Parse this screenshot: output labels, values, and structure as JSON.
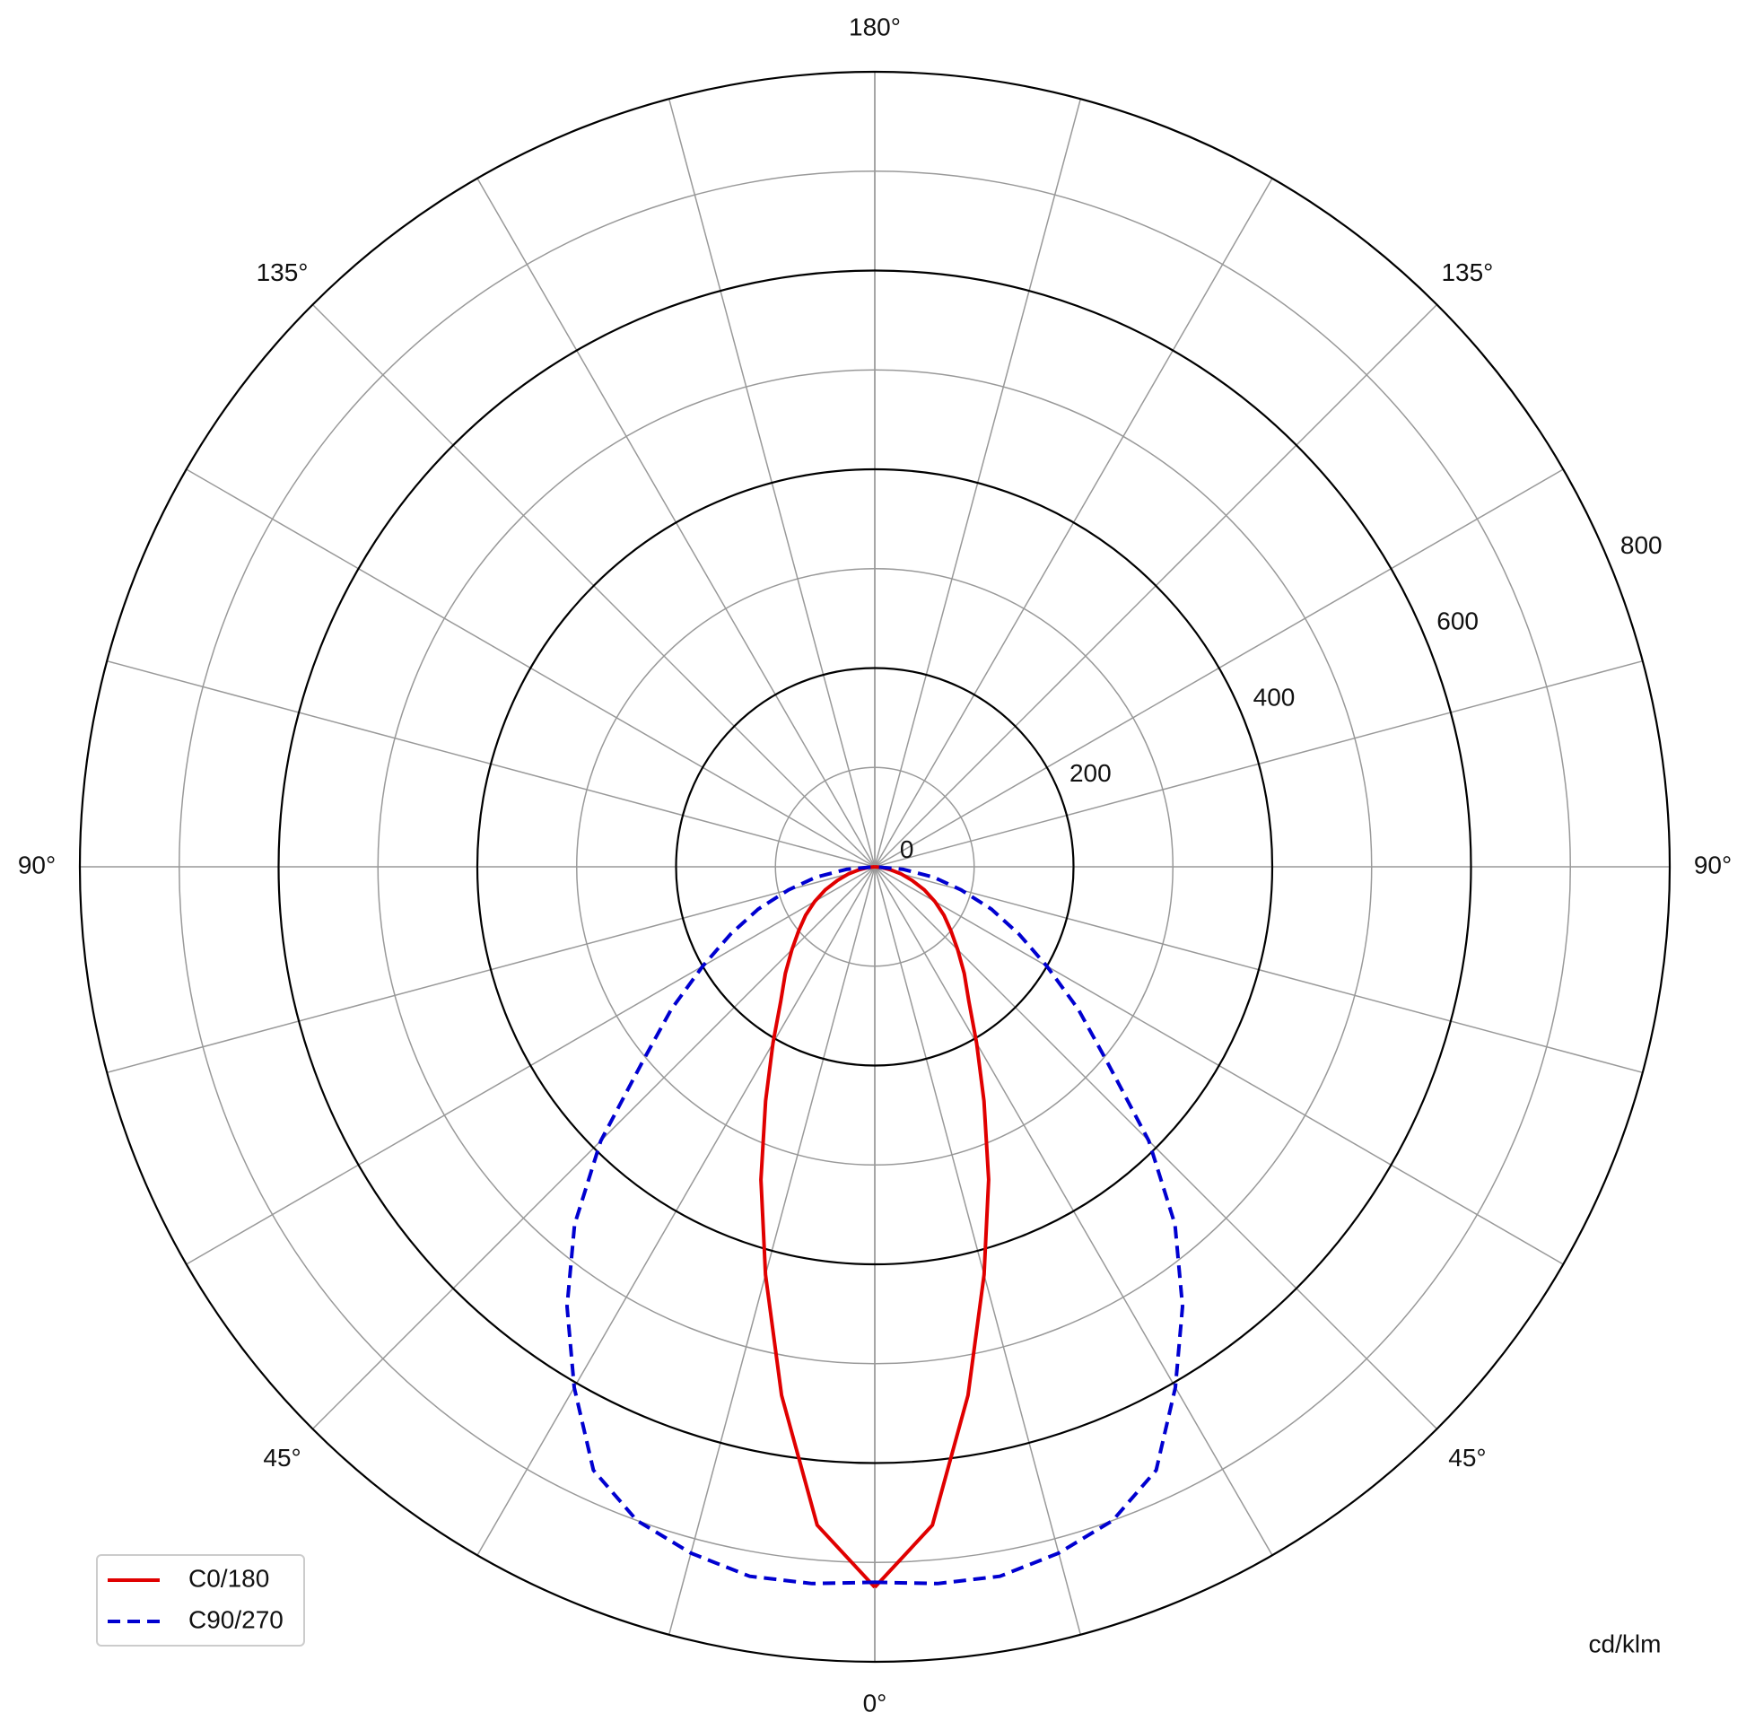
{
  "chart_data": {
    "type": "polar",
    "unit_label": "cd/klm",
    "x": [
      0,
      5,
      10,
      15,
      20,
      25,
      30,
      35,
      40,
      45,
      50,
      55,
      60,
      65,
      70,
      75,
      80,
      85,
      90
    ],
    "series": [
      {
        "name": "C0/180",
        "color": "#e00000",
        "dash": false,
        "values": [
          725,
          665,
          540,
          425,
          335,
          260,
          205,
          165,
          140,
          118,
          100,
          85,
          70,
          55,
          40,
          27,
          15,
          6,
          0
        ]
      },
      {
        "name": "C90/270",
        "color": "#0000d0",
        "dash": true,
        "values": [
          720,
          724,
          725,
          715,
          700,
          670,
          605,
          540,
          470,
          390,
          305,
          250,
          200,
          160,
          125,
          90,
          60,
          28,
          0
        ]
      }
    ],
    "rlim": [
      0,
      800
    ],
    "rticks": [
      0,
      200,
      400,
      600,
      800
    ],
    "r_minor_ticks": [
      100,
      300,
      500,
      700
    ],
    "theta_grid": [
      0,
      15,
      30,
      45,
      60,
      75,
      90,
      105,
      120,
      135,
      150,
      165,
      180
    ],
    "theta_ticks": [
      {
        "value": 0,
        "label": "0°"
      },
      {
        "value": 45,
        "label": "45°"
      },
      {
        "value": 90,
        "label": "90°"
      },
      {
        "value": 135,
        "label": "135°"
      },
      {
        "value": 180,
        "label": "180°"
      }
    ],
    "legend": "lower left"
  }
}
